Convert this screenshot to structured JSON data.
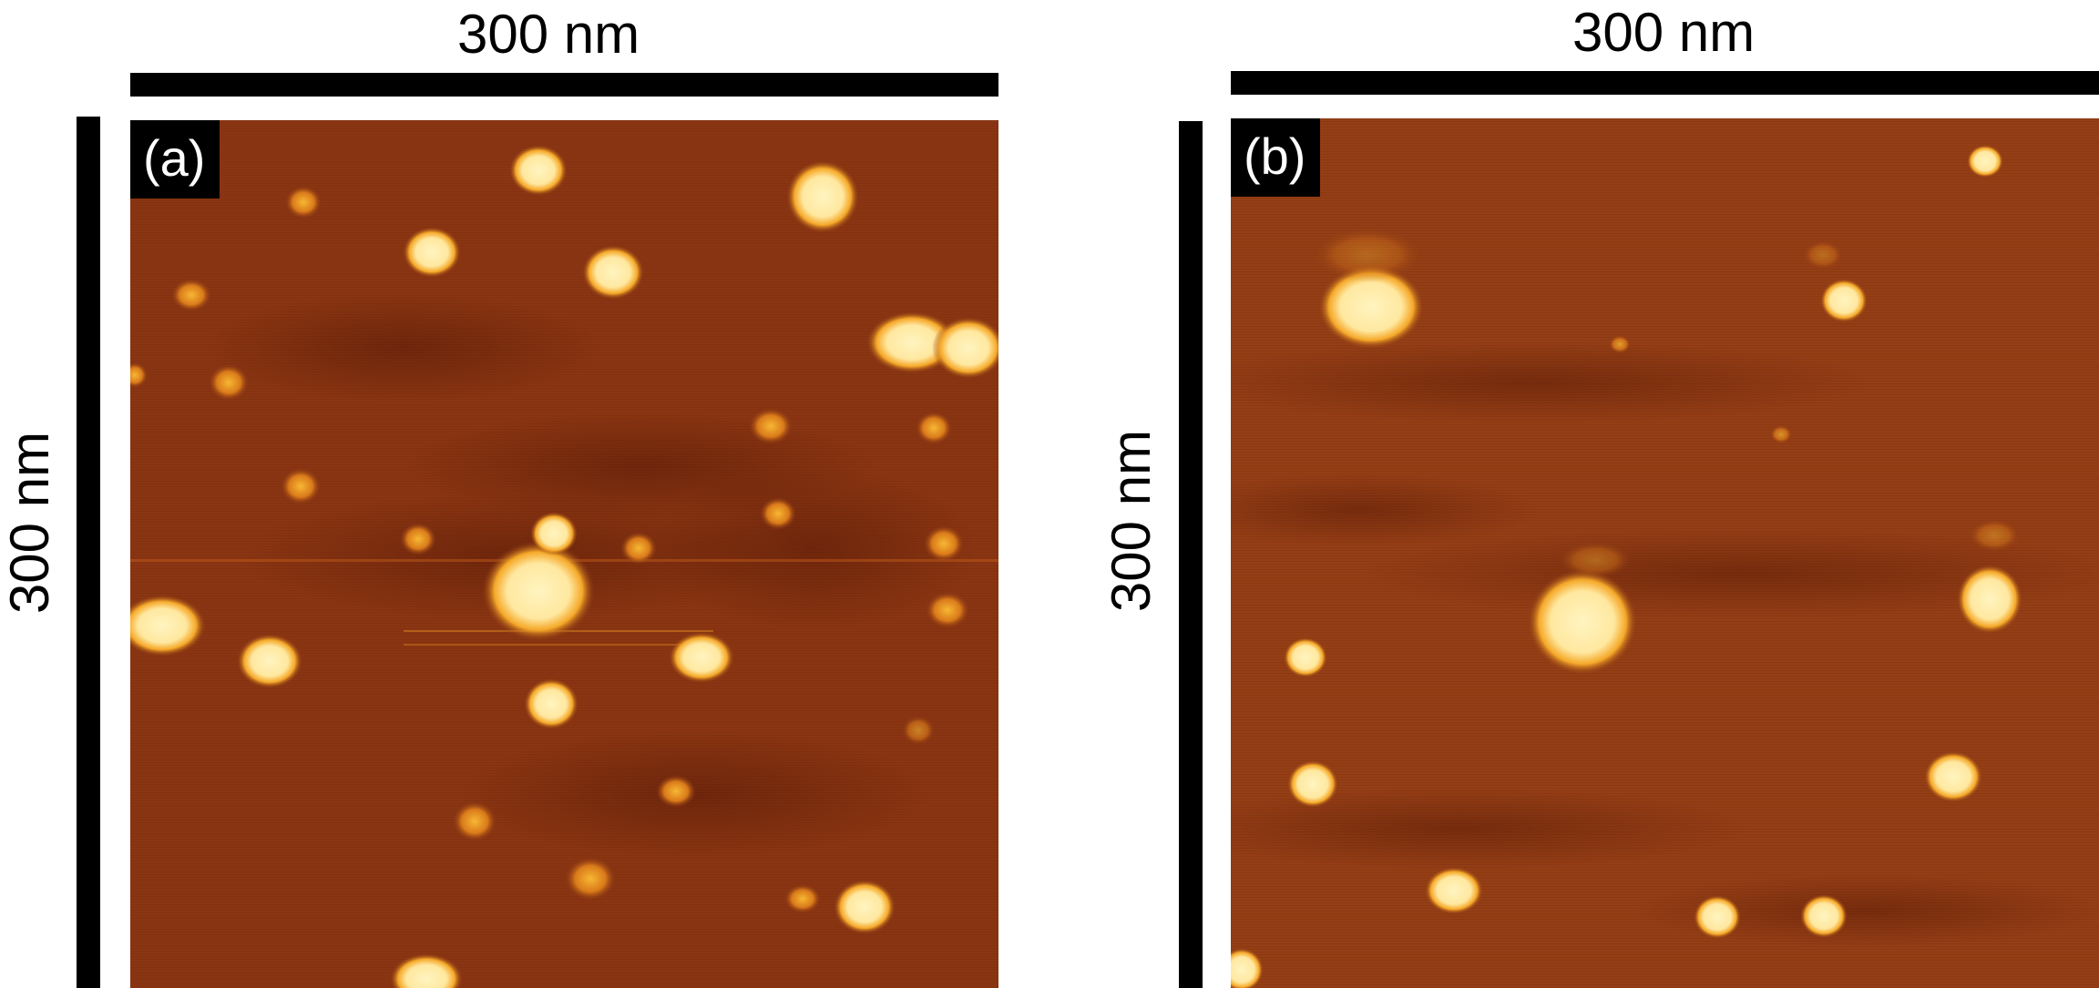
{
  "panel_a": {
    "tag": "(a)",
    "scale_x_label": "300 nm",
    "scale_y_label": "300 nm"
  },
  "panel_b": {
    "tag": "(b)",
    "scale_x_label": "300 nm",
    "scale_y_label": "300 nm"
  },
  "colors": {
    "background_dark": "#7a2a0e",
    "background_mid": "#8f3a12",
    "particle_bright": "#fff2b8",
    "particle_edge": "#f3a321",
    "bars": "#000000"
  }
}
